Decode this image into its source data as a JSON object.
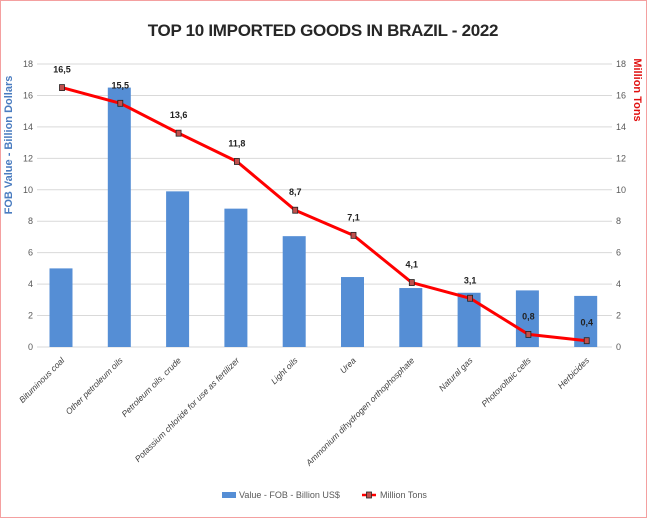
{
  "chart_data": {
    "type": "bar+line",
    "title": "TOP 10 IMPORTED GOODS IN BRAZIL - 2022",
    "ylabel": "FOB Value - Billion Dollars",
    "y2label": "Million Tons",
    "ylim": [
      0,
      18
    ],
    "y2lim": [
      0,
      18
    ],
    "yticks": [
      0,
      2,
      4,
      6,
      8,
      10,
      12,
      14,
      16,
      18
    ],
    "categories": [
      "Bituminous coal",
      "Other petroleum oils",
      "Petroleum oils, crude",
      "Potassium chloride for use as fertilizer",
      "Light oils",
      "Urea",
      "Ammonium dihydrogen orthophosphate",
      "Natural gas",
      "Photovoltaic cells",
      "Herbicides"
    ],
    "series": [
      {
        "name": "Value - FOB - Billion US$",
        "type": "bar",
        "axis": "left",
        "color": "#558ed5",
        "values": [
          5.0,
          16.5,
          9.9,
          8.8,
          7.05,
          4.45,
          3.75,
          3.45,
          3.6,
          3.25
        ]
      },
      {
        "name": "Million Tons",
        "type": "line",
        "axis": "right",
        "color": "#ff0000",
        "values": [
          16.5,
          15.5,
          13.6,
          11.8,
          8.7,
          7.1,
          4.1,
          3.1,
          0.8,
          0.4
        ],
        "labels": [
          "16,5",
          "15,5",
          "13,6",
          "11,8",
          "8,7",
          "7,1",
          "4,1",
          "3,1",
          "0,8",
          "0,4"
        ]
      }
    ],
    "grid": true,
    "legend": "bottom"
  }
}
